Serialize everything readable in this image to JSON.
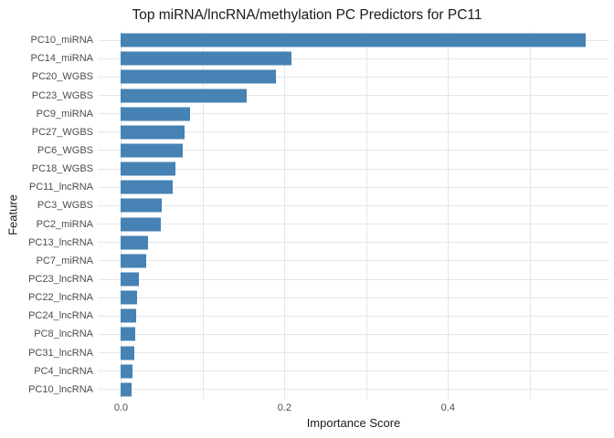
{
  "chart_data": {
    "type": "bar",
    "orientation": "horizontal",
    "title": "Top miRNA/lncRNA/methylation PC Predictors for PC11",
    "xlabel": "Importance Score",
    "ylabel": "Feature",
    "categories": [
      "PC10_miRNA",
      "PC14_miRNA",
      "PC20_WGBS",
      "PC23_WGBS",
      "PC9_miRNA",
      "PC27_WGBS",
      "PC6_WGBS",
      "PC18_WGBS",
      "PC11_lncRNA",
      "PC3_WGBS",
      "PC2_miRNA",
      "PC13_lncRNA",
      "PC7_miRNA",
      "PC23_lncRNA",
      "PC22_lncRNA",
      "PC24_lncRNA",
      "PC8_lncRNA",
      "PC31_lncRNA",
      "PC4_lncRNA",
      "PC10_lncRNA"
    ],
    "values": [
      0.569,
      0.209,
      0.19,
      0.154,
      0.084,
      0.078,
      0.075,
      0.066,
      0.063,
      0.05,
      0.049,
      0.033,
      0.031,
      0.022,
      0.02,
      0.018,
      0.017,
      0.016,
      0.014,
      0.013
    ],
    "x_ticks": [
      0.0,
      0.2,
      0.4
    ],
    "x_tick_labels": [
      "0.0",
      "0.2",
      "0.4"
    ],
    "xlim": [
      -0.0285,
      0.5975
    ],
    "gridlines_x": [
      0.0,
      0.1,
      0.2,
      0.3,
      0.4,
      0.5
    ],
    "grid": true,
    "legend": false,
    "bar_color": "#4682B4",
    "grid_color": "#e6e6e6",
    "background": "#ffffff",
    "text_color_labels": "#4d4d4d",
    "text_color_titles": "#1a1a1a"
  }
}
